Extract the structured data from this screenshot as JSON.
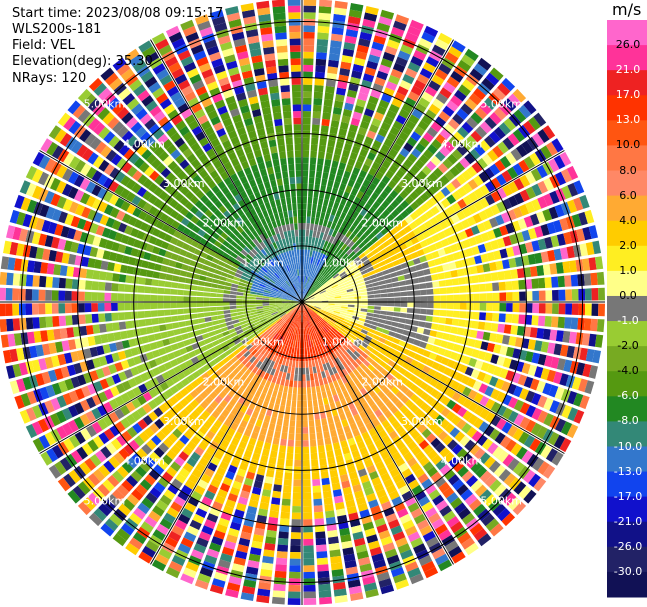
{
  "header": {
    "start_time": "Start time: 2023/08/08 09:15:17",
    "instrument": "WLS200s-181",
    "field": "Field: VEL",
    "elevation": "Elevation(deg): 35.30",
    "nrays": "NRays: 120"
  },
  "colorbar": {
    "title": "m/s",
    "labels": [
      "26.0",
      "21.0",
      "17.0",
      "13.0",
      "10.0",
      "8.0",
      "6.0",
      "4.0",
      "2.0",
      "1.0",
      "0.0",
      "-1.0",
      "-2.0",
      "-4.0",
      "-6.0",
      "-8.0",
      "-10.0",
      "-13.0",
      "-17.0",
      "-21.0",
      "-26.0",
      "-30.0"
    ],
    "colors": [
      "#ff66cc",
      "#ff3399",
      "#ee2222",
      "#ff3300",
      "#ff5511",
      "#ff7744",
      "#ff8866",
      "#ffaa33",
      "#ffcc00",
      "#ffee22",
      "#ffff88",
      "#777777",
      "#99cc33",
      "#77aa22",
      "#559911",
      "#228822",
      "#338877",
      "#3377cc",
      "#1144ee",
      "#1111cc",
      "#111188",
      "#222266",
      "#111155"
    ]
  },
  "chart_data": {
    "type": "ppi",
    "field": "VEL",
    "units": "m/s",
    "nrays": 120,
    "range_rings_km": [
      1,
      2,
      3,
      4,
      5
    ],
    "range_labels": [
      "1.00km",
      "2.00km",
      "3.00km",
      "4.00km",
      "5.00km"
    ],
    "max_range_km": 5.4,
    "color_scale_min": -30,
    "color_scale_max": 26
  }
}
